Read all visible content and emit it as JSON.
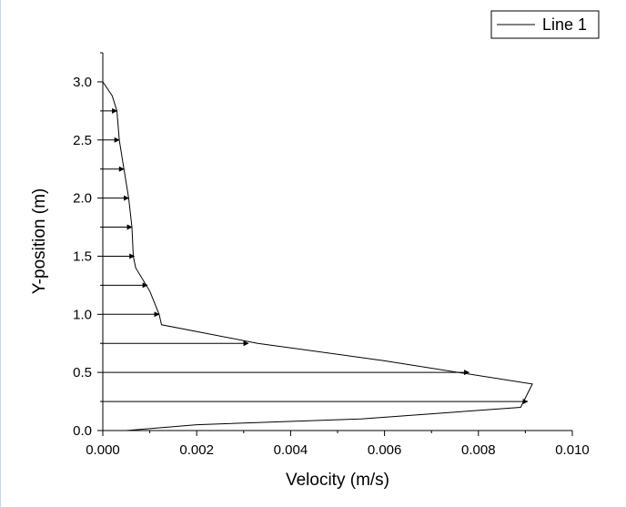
{
  "chart_data": {
    "type": "line",
    "title": "",
    "xlabel": "Velocity (m/s)",
    "ylabel": "Y-position (m)",
    "xlim": [
      0,
      0.01
    ],
    "ylim": [
      0,
      3.25
    ],
    "x_ticks": [
      "0.000",
      "0.002",
      "0.004",
      "0.006",
      "0.008",
      "0.010"
    ],
    "y_ticks": [
      "0.0",
      "0.5",
      "1.0",
      "1.5",
      "2.0",
      "2.5",
      "3.0"
    ],
    "grid": false,
    "legend_position": "top-right",
    "series": [
      {
        "name": "Line 1",
        "color": "#000000",
        "points": [
          [
            0.0005,
            0.0
          ],
          [
            0.002,
            0.05
          ],
          [
            0.0055,
            0.1
          ],
          [
            0.0089,
            0.2
          ],
          [
            0.00915,
            0.4
          ],
          [
            0.006,
            0.6
          ],
          [
            0.0033,
            0.75
          ],
          [
            0.00125,
            0.91
          ],
          [
            0.0012,
            1.0
          ],
          [
            0.001,
            1.2
          ],
          [
            0.0007,
            1.4
          ],
          [
            0.00065,
            1.5
          ],
          [
            0.00062,
            1.75
          ],
          [
            0.00055,
            2.0
          ],
          [
            0.00045,
            2.25
          ],
          [
            0.00035,
            2.5
          ],
          [
            0.0003,
            2.75
          ],
          [
            0.0002,
            2.88
          ],
          [
            0.0,
            3.0
          ]
        ]
      }
    ],
    "arrows": [
      {
        "y": 0.25,
        "u": 0.00905
      },
      {
        "y": 0.5,
        "u": 0.0078
      },
      {
        "y": 0.75,
        "u": 0.0031
      },
      {
        "y": 1.0,
        "u": 0.0012
      },
      {
        "y": 1.25,
        "u": 0.00095
      },
      {
        "y": 1.5,
        "u": 0.00067
      },
      {
        "y": 1.75,
        "u": 0.00062
      },
      {
        "y": 2.0,
        "u": 0.00055
      },
      {
        "y": 2.25,
        "u": 0.00045
      },
      {
        "y": 2.5,
        "u": 0.00035
      },
      {
        "y": 2.75,
        "u": 0.0003
      }
    ]
  }
}
